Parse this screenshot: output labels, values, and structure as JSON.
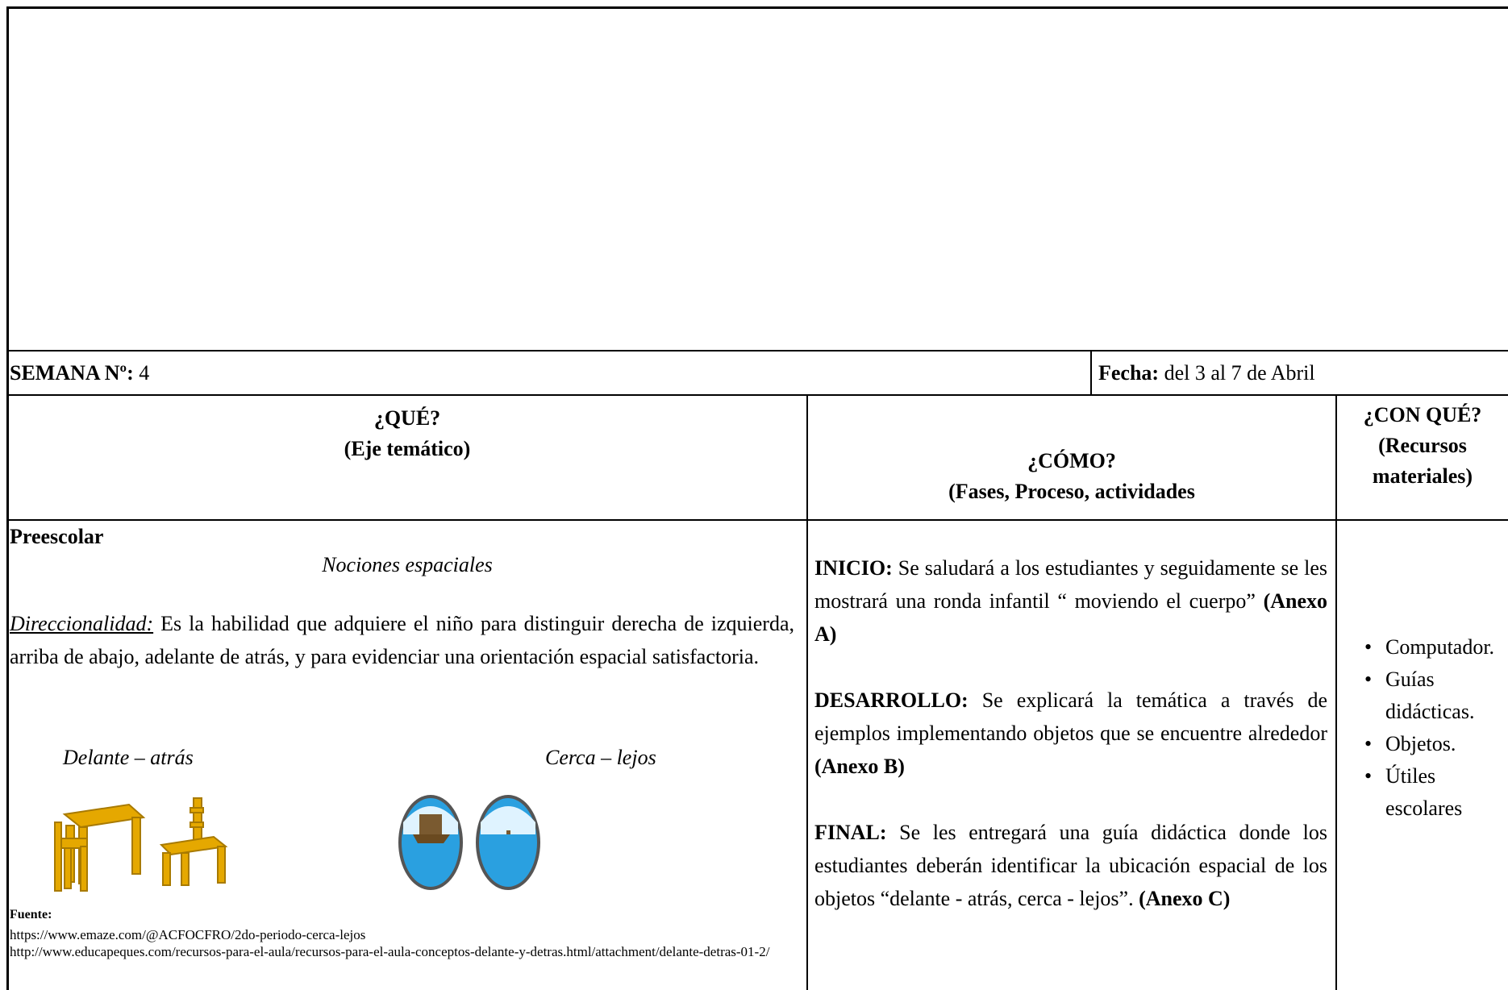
{
  "semana": {
    "label": "SEMANA  Nº:",
    "value": "4"
  },
  "fecha": {
    "label": "Fecha:",
    "value": "del  3 al 7 de Abril"
  },
  "headers": [
    {
      "title": "¿QUÉ?",
      "subtitle": "(Eje temático)"
    },
    {
      "title": "¿CÓMO?",
      "subtitle": "(Fases, Proceso, actividades"
    },
    {
      "title": "¿CON QUÉ?",
      "subtitle": "(Recursos materiales)"
    }
  ],
  "que": {
    "grade": "Preescolar",
    "topic": "Nociones espaciales",
    "term": "Direccionalidad:",
    "definition": "Es la habilidad que adquiere el niño para distinguir derecha de izquierda, arriba de abajo, adelante de atrás, y para evidenciar una orientación espacial satisfactoria.",
    "captions": [
      "Delante – atrás",
      "Cerca – lejos"
    ],
    "source_label": "Fuente:",
    "sources": [
      "https://www.emaze.com/@ACFOCFRO/2do-periodo-cerca-lejos",
      "http://www.educapeques.com/recursos-para-el-aula/recursos-para-el-aula-conceptos-delante-y-detras.html/attachment/delante-detras-01-2/"
    ]
  },
  "como": [
    {
      "label": "INICIO:",
      "text": "Se saludará a los estudiantes y seguidamente se les mostrará una ronda infantil “ moviendo el cuerpo”",
      "annex": "(Anexo A)"
    },
    {
      "label": "DESARROLLO:",
      "text": "Se explicará la temática a través de ejemplos implementando objetos que se encuentre alrededor",
      "annex": "(Anexo B)"
    },
    {
      "label": "FINAL:",
      "text": "Se les entregará una guía didáctica donde los estudiantes deberán identificar  la ubicación espacial de los objetos “delante - atrás, cerca - lejos”.",
      "annex": "(Anexo C)"
    }
  ],
  "recursos": [
    "Computador.",
    "Guías didácticas.",
    "Objetos.",
    "Útiles escolares"
  ]
}
